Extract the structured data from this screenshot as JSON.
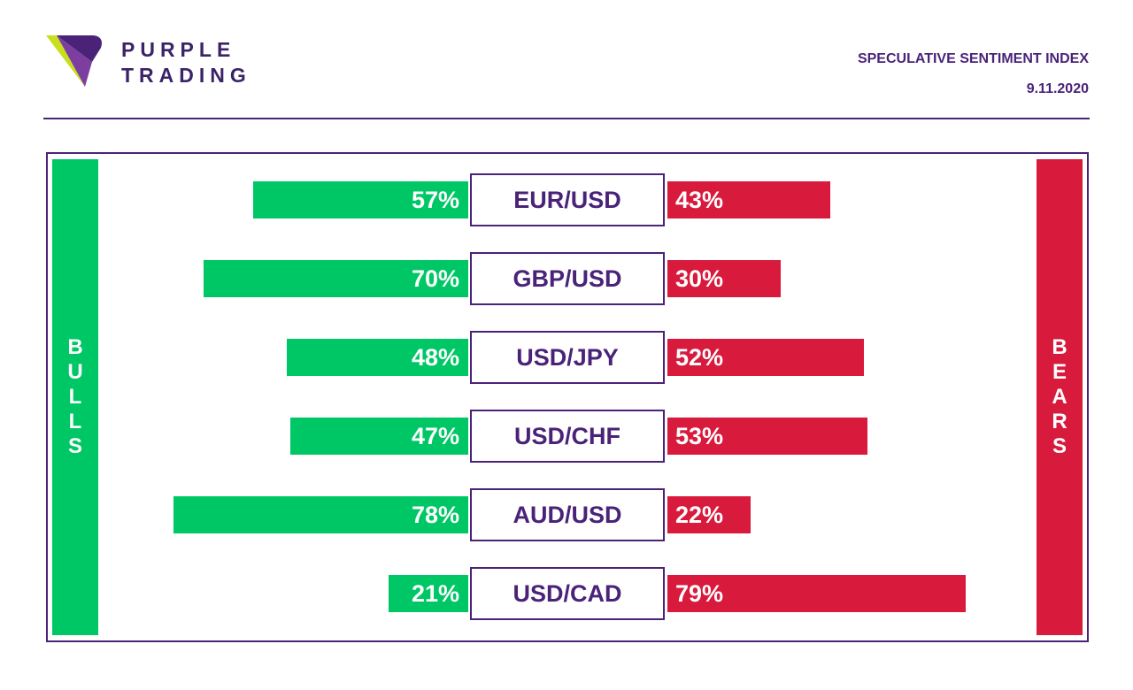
{
  "brand": {
    "line1": "PURPLE",
    "line2": "TRADING"
  },
  "header": {
    "title": "SPECULATIVE SENTIMENT INDEX",
    "date": "9.11.2020"
  },
  "colors": {
    "bull": "#00c766",
    "bear": "#d81a3d",
    "accent": "#4a2379"
  },
  "chart_data": {
    "type": "bar",
    "sides": {
      "bulls": "BULLS",
      "bears": "BEARS"
    },
    "categories": [
      "EUR/USD",
      "GBP/USD",
      "USD/JPY",
      "USD/CHF",
      "AUD/USD",
      "USD/CAD"
    ],
    "series": [
      {
        "name": "BULLS",
        "values": [
          57,
          70,
          48,
          47,
          78,
          21
        ]
      },
      {
        "name": "BEARS",
        "values": [
          43,
          30,
          52,
          53,
          22,
          79
        ]
      }
    ],
    "unit": "%"
  }
}
